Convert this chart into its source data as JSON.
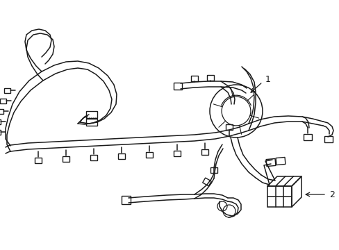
{
  "bg_color": "#ffffff",
  "line_color": "#1a1a1a",
  "lw": 1.1,
  "figsize": [
    4.89,
    3.6
  ],
  "dpi": 100,
  "xlim": [
    0,
    489
  ],
  "ylim": [
    0,
    360
  ]
}
